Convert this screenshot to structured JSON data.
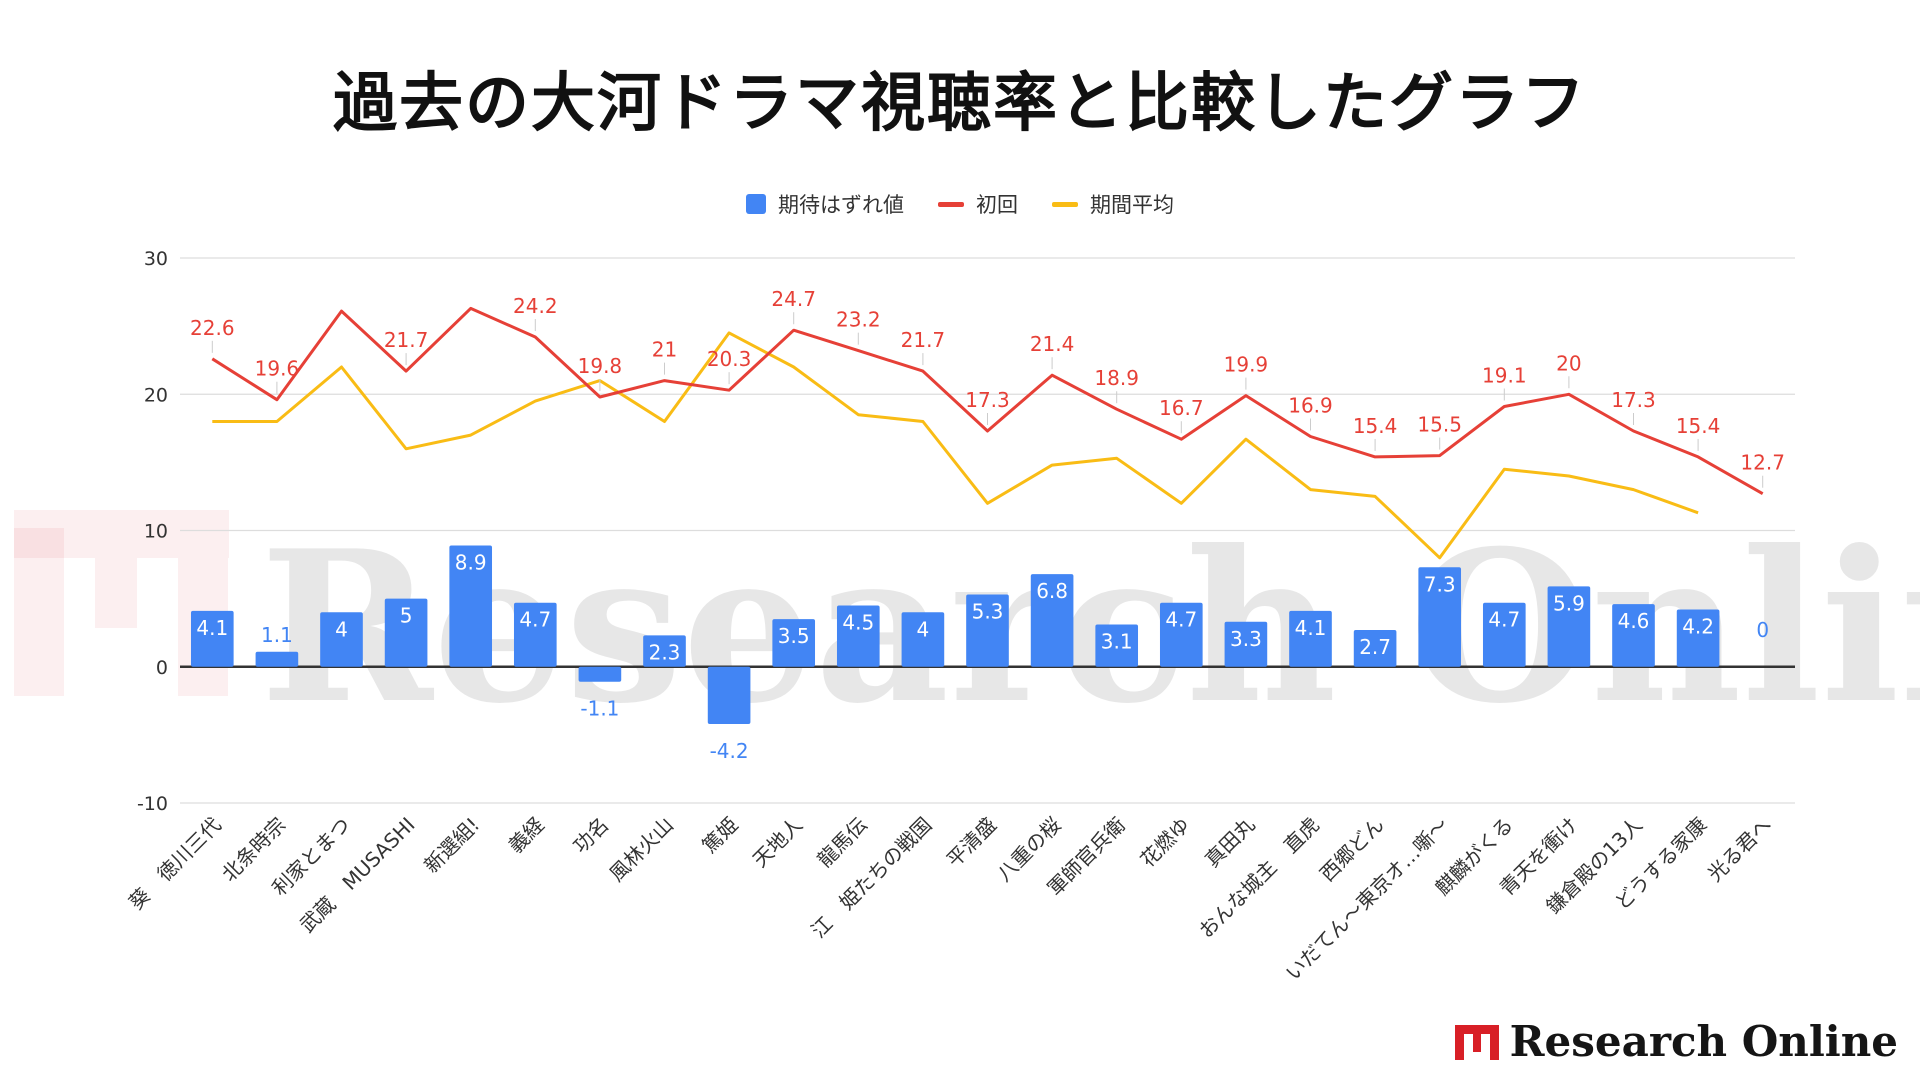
{
  "page": {
    "title": "過去の大河ドラマ視聴率と比較したグラフ",
    "watermark": "Research Online",
    "brand": "Research Online"
  },
  "colors": {
    "bar": "#4285f4",
    "first_episode": "#e64037",
    "period_average": "#f9bc15",
    "grid": "#dddddd",
    "brand_red": "#d81f26"
  },
  "chart_data": {
    "type": "bar",
    "categories": [
      "葵　徳川三代",
      "北条時宗",
      "利家とまつ",
      "武蔵　MUSASHI",
      "新選組!",
      "義経",
      "功名",
      "風林火山",
      "篤姫",
      "天地人",
      "龍馬伝",
      "江　姫たちの戦国",
      "平清盛",
      "八重の桜",
      "軍師官兵衛",
      "花燃ゆ",
      "真田丸",
      "おんな城主　直虎",
      "西郷どん",
      "いだてん〜東京オリムピック噺〜",
      "麒麟がくる",
      "青天を衝け",
      "鎌倉殿の13人",
      "どうする家康",
      "光る君へ"
    ],
    "display_labels": [
      "葵　徳川三代",
      "北条時宗",
      "利家とまつ",
      "武蔵　MUSASHI",
      "新選組!",
      "義経",
      "功名",
      "風林火山",
      "篤姫",
      "天地人",
      "龍馬伝",
      "江　姫たちの戦国",
      "平清盛",
      "八重の桜",
      "軍師官兵衛",
      "花燃ゆ",
      "真田丸",
      "おんな城主　直虎",
      "西郷どん",
      "いだてん〜東京オ…噺〜",
      "麒麟がくる",
      "青天を衝け",
      "鎌倉殿の13人",
      "どうする家康",
      "光る君へ"
    ],
    "series": [
      {
        "name": "期待はずれ値",
        "type": "bar",
        "values": [
          4.1,
          1.1,
          4,
          5,
          8.9,
          4.7,
          -1.1,
          2.3,
          -4.2,
          3.5,
          4.5,
          4,
          5.3,
          6.8,
          3.1,
          4.7,
          3.3,
          4.1,
          2.7,
          7.3,
          4.7,
          5.9,
          4.6,
          4.2,
          0
        ],
        "labeled": true
      },
      {
        "name": "初回",
        "type": "line",
        "values": [
          22.6,
          19.6,
          26.1,
          21.7,
          26.3,
          24.2,
          19.8,
          21,
          20.3,
          24.7,
          23.2,
          21.7,
          17.3,
          21.4,
          18.9,
          16.7,
          19.9,
          16.9,
          15.4,
          15.5,
          19.1,
          20,
          17.3,
          15.4,
          12.7
        ],
        "labeled": [
          true,
          true,
          false,
          true,
          false,
          true,
          true,
          true,
          true,
          true,
          true,
          true,
          true,
          true,
          true,
          true,
          true,
          true,
          true,
          true,
          true,
          true,
          true,
          true,
          true
        ]
      },
      {
        "name": "期間平均",
        "type": "line",
        "values": [
          18,
          18,
          22,
          16,
          17,
          19.5,
          21,
          18,
          24.5,
          22,
          18.5,
          18,
          12,
          14.8,
          15.3,
          12,
          16.7,
          13,
          12.5,
          8,
          14.5,
          14,
          13,
          11.3,
          null
        ],
        "labeled": false
      }
    ],
    "ylim": [
      -10,
      30
    ],
    "yticks": [
      -10,
      0,
      10,
      20,
      30
    ],
    "grid": true,
    "legend": "top-center"
  }
}
